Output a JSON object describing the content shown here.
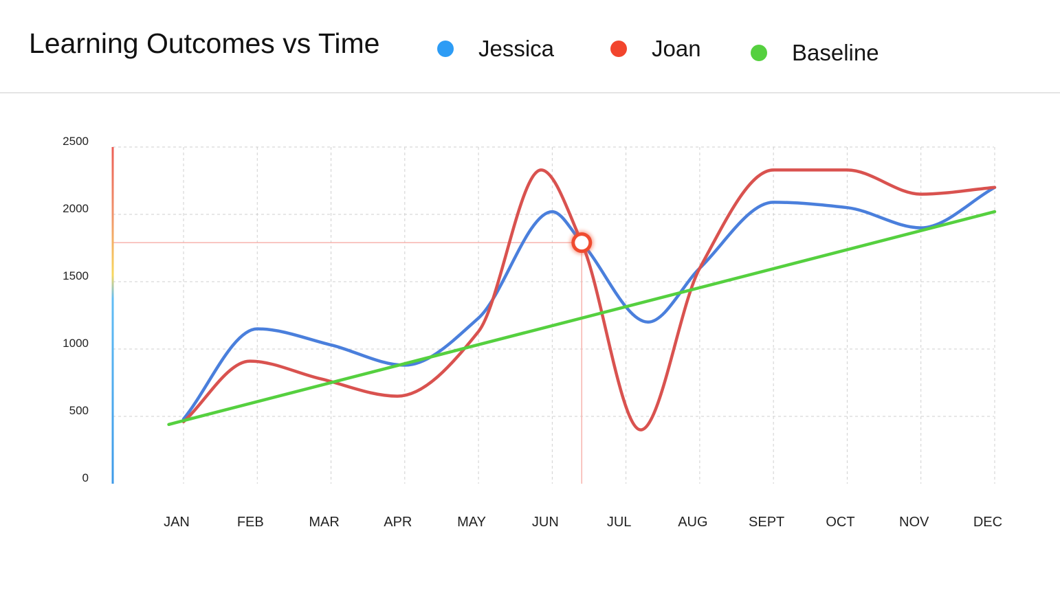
{
  "chart_data": {
    "type": "line",
    "title": "Learning Outcomes vs Time",
    "categories": [
      "JAN",
      "FEB",
      "MAR",
      "APR",
      "MAY",
      "JUN",
      "JUL",
      "AUG",
      "SEPT",
      "OCT",
      "NOV",
      "DEC"
    ],
    "yticks": [
      "0",
      "500",
      "1000",
      "1500",
      "2000",
      "2500"
    ],
    "ylim": [
      0,
      2500
    ],
    "grid": true,
    "legend_position": "top",
    "series": [
      {
        "name": "Jessica",
        "color": "#4a7fdc",
        "legend_color": "#2d9cf5",
        "x": [
          0,
          1,
          2,
          3,
          4,
          5,
          5.4,
          6.3,
          7,
          8,
          9,
          10,
          11
        ],
        "values": [
          480,
          1150,
          1030,
          880,
          1230,
          2020,
          1790,
          1200,
          1600,
          2090,
          2050,
          1900,
          2200
        ]
      },
      {
        "name": "Joan",
        "color": "#d9524f",
        "legend_color": "#f2452d",
        "x": [
          0,
          0.9,
          1.85,
          2.9,
          4,
          4.85,
          5.4,
          6.2,
          7,
          8,
          9,
          10,
          11
        ],
        "values": [
          460,
          910,
          780,
          650,
          1130,
          2330,
          1790,
          400,
          1600,
          2330,
          2330,
          2150,
          2200
        ]
      },
      {
        "name": "Baseline",
        "color": "#55d03f",
        "legend_color": "#55d03f",
        "x": [
          -0.2,
          11
        ],
        "values": [
          440,
          2020
        ]
      }
    ],
    "highlight": {
      "series": "Joan",
      "x": 5.4,
      "value": 1790
    }
  }
}
